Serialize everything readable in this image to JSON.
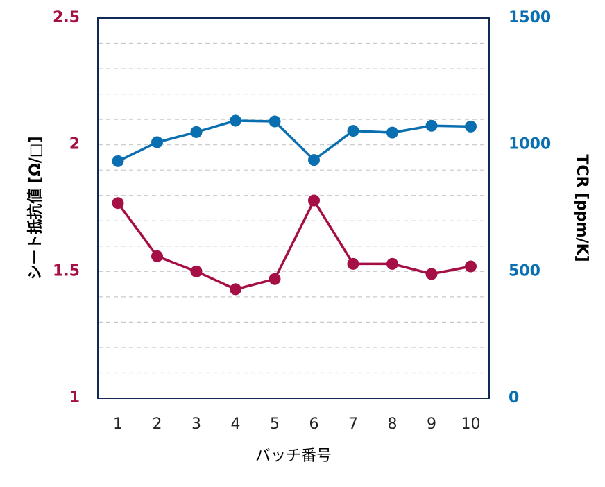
{
  "chart_data": {
    "type": "line",
    "title": "",
    "x": [
      "1",
      "2",
      "3",
      "4",
      "5",
      "6",
      "7",
      "8",
      "9",
      "10"
    ],
    "xlabel": "バッチ番号",
    "y_left": {
      "label": "シート抵抗値 [Ω/□]",
      "range": [
        1,
        2.5
      ],
      "ticks": [
        "1",
        "1.5",
        "2",
        "2.5"
      ],
      "color": "#A50F45"
    },
    "y_right": {
      "label": "TCR [ppm/K]",
      "range": [
        0,
        1500
      ],
      "ticks": [
        "0",
        "500",
        "1000",
        "1500"
      ],
      "color": "#0A6FB0"
    },
    "series": [
      {
        "axis": "left",
        "color": "#A50F45",
        "values": [
          1.77,
          1.56,
          1.5,
          1.43,
          1.47,
          1.78,
          1.53,
          1.53,
          1.49,
          1.52
        ]
      },
      {
        "axis": "right",
        "color": "#0A6FB0",
        "values": [
          935,
          1010,
          1050,
          1095,
          1092,
          940,
          1055,
          1048,
          1075,
          1072
        ]
      }
    ],
    "grid": true,
    "legend": "none",
    "frame_color": "#102A55",
    "grid_color": "#C8C8C8"
  }
}
